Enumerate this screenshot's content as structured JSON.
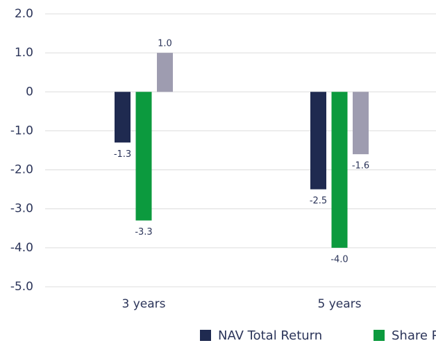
{
  "chart_data": {
    "type": "bar",
    "categories": [
      "3 years",
      "5 years"
    ],
    "series": [
      {
        "name": "NAV Total Return",
        "color": "#1f2a50",
        "values": [
          -1.3,
          -2.5
        ],
        "value_labels": [
          "-1.3",
          "-2.5"
        ]
      },
      {
        "name": "Share Price Total Return",
        "color": "#0c9a3e",
        "values": [
          -3.3,
          -4.0
        ],
        "value_labels": [
          "-3.3",
          "-4.0"
        ]
      },
      {
        "color": "#9e9cb0",
        "values": [
          1.0,
          -1.6
        ],
        "value_labels": [
          "1.0",
          "-1.6"
        ]
      }
    ],
    "ylim": [
      -5,
      2
    ],
    "yticks": [
      {
        "value": -5,
        "label": "-5.0"
      },
      {
        "value": -4,
        "label": "-4.0"
      },
      {
        "value": -3,
        "label": "-3.0"
      },
      {
        "value": -2,
        "label": "-2.0"
      },
      {
        "value": -1,
        "label": "-1.0"
      },
      0,
      {
        "value": 1,
        "label": "1.0"
      },
      {
        "value": 2,
        "label": "2.0"
      }
    ],
    "grid": true
  }
}
